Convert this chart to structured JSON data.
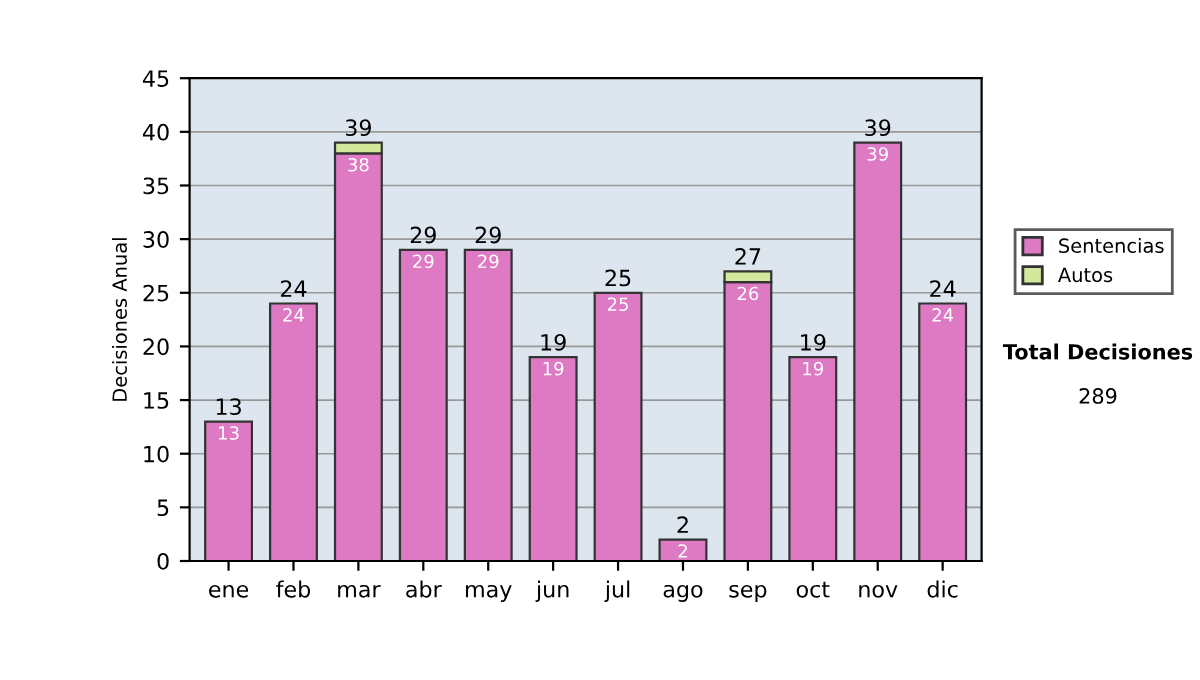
{
  "chart_data": {
    "type": "bar",
    "stacked": true,
    "ylabel": "Decisiones Anual",
    "categories": [
      "ene",
      "feb",
      "mar",
      "abr",
      "may",
      "jun",
      "jul",
      "ago",
      "sep",
      "oct",
      "nov",
      "dic"
    ],
    "series": [
      {
        "name": "Sentencias",
        "color": "#dd7ac3",
        "values": [
          13,
          24,
          38,
          29,
          29,
          19,
          25,
          2,
          26,
          19,
          39,
          24
        ],
        "value_labels": [
          "13",
          "24",
          "38",
          "29",
          "29",
          "19",
          "25",
          "2",
          "26",
          "19",
          "39",
          "24"
        ]
      },
      {
        "name": "Autos",
        "color": "#d3e89a",
        "values": [
          0,
          0,
          1,
          0,
          0,
          0,
          0,
          0,
          1,
          0,
          0,
          0
        ]
      }
    ],
    "totals": [
      "13",
      "24",
      "39",
      "29",
      "29",
      "19",
      "25",
      "2",
      "27",
      "19",
      "39",
      "24"
    ],
    "ylim": [
      0,
      45
    ],
    "yticks": [
      0,
      5,
      10,
      15,
      20,
      25,
      30,
      35,
      40,
      45
    ],
    "grid": "y",
    "legend": "right",
    "annotations": [
      "Total Decisiones",
      "289"
    ]
  }
}
